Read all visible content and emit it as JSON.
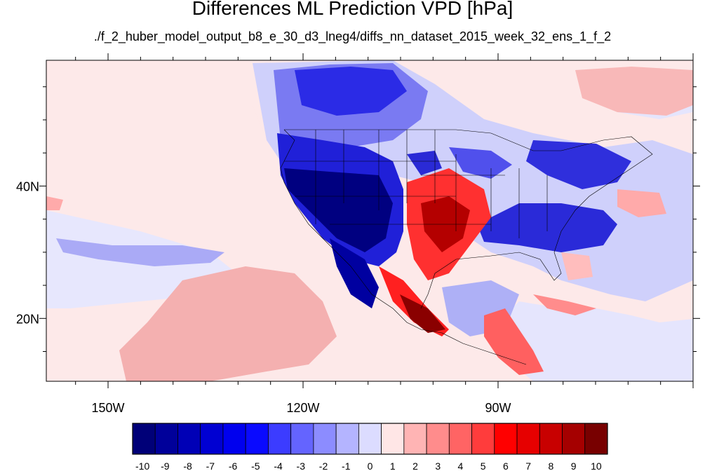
{
  "title": "Differences ML Prediction VPD [hPa]",
  "subtitle": "./f_2_huber_model_output_b8_e_30_d3_lneg4/diffs_nn_dataset_2015_week_32_ens_1_f_2",
  "map": {
    "lon_range": [
      -159.5,
      -60
    ],
    "lat_range": [
      10.5,
      59
    ],
    "lon_labels": [
      "150W",
      "120W",
      "90W"
    ],
    "lon_label_values": [
      -150,
      -120,
      -90
    ],
    "lat_labels": [
      "40N",
      "20N"
    ],
    "lat_label_values": [
      40,
      20
    ],
    "background_color": "#fde9e9"
  },
  "colorbar": {
    "labels": [
      "-10",
      "-9",
      "-8",
      "-7",
      "-6",
      "-5",
      "-4",
      "-3",
      "-2",
      "-1",
      "0",
      "1",
      "2",
      "3",
      "4",
      "5",
      "6",
      "7",
      "8",
      "9",
      "10"
    ],
    "colors": [
      "#000078",
      "#00009a",
      "#0000b6",
      "#0000d2",
      "#0000ee",
      "#0a0aff",
      "#3c3cff",
      "#6464ff",
      "#8c8cff",
      "#b4b4ff",
      "#dcdcff",
      "#ffe6e6",
      "#ffb4b4",
      "#ff8c8c",
      "#ff6464",
      "#ff3c3c",
      "#ff0000",
      "#e60000",
      "#c80000",
      "#a50000",
      "#780000"
    ]
  }
}
